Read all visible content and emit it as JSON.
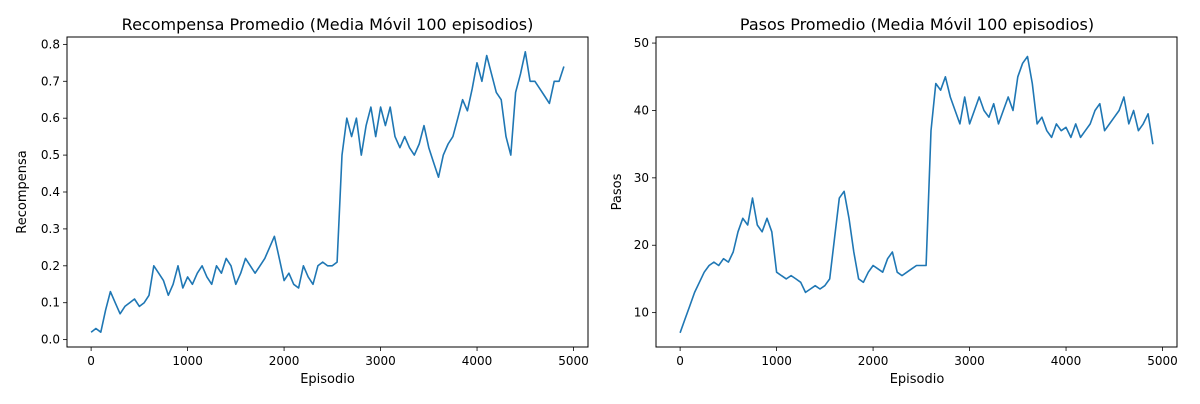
{
  "chart_data": [
    {
      "type": "line",
      "title": "Recompensa Promedio (Media Móvil 100 episodios)",
      "xlabel": "Episodio",
      "ylabel": "Recompensa",
      "xlim": [
        -250,
        5150
      ],
      "ylim": [
        -0.02,
        0.82
      ],
      "xticks": [
        "0",
        "1000",
        "2000",
        "3000",
        "4000",
        "5000"
      ],
      "yticks": [
        "0.0",
        "0.1",
        "0.2",
        "0.3",
        "0.4",
        "0.5",
        "0.6",
        "0.7",
        "0.8"
      ],
      "grid": false,
      "color": "#1f77b4",
      "series": [
        {
          "x": [
            0,
            50,
            100,
            150,
            200,
            250,
            300,
            350,
            400,
            450,
            500,
            550,
            600,
            650,
            700,
            750,
            800,
            850,
            900,
            950,
            1000,
            1050,
            1100,
            1150,
            1200,
            1250,
            1300,
            1350,
            1400,
            1450,
            1500,
            1550,
            1600,
            1650,
            1700,
            1750,
            1800,
            1850,
            1900,
            1950,
            2000,
            2050,
            2100,
            2150,
            2200,
            2250,
            2300,
            2350,
            2400,
            2450,
            2500,
            2550,
            2600,
            2650,
            2700,
            2750,
            2800,
            2850,
            2900,
            2950,
            3000,
            3050,
            3100,
            3150,
            3200,
            3250,
            3300,
            3350,
            3400,
            3450,
            3500,
            3550,
            3600,
            3650,
            3700,
            3750,
            3800,
            3850,
            3900,
            3950,
            4000,
            4050,
            4100,
            4150,
            4200,
            4250,
            4300,
            4350,
            4400,
            4450,
            4500,
            4550,
            4600,
            4650,
            4700,
            4750,
            4800,
            4850,
            4900
          ],
          "y": [
            0.02,
            0.03,
            0.02,
            0.08,
            0.13,
            0.1,
            0.07,
            0.09,
            0.1,
            0.11,
            0.09,
            0.1,
            0.12,
            0.2,
            0.18,
            0.16,
            0.12,
            0.15,
            0.2,
            0.14,
            0.17,
            0.15,
            0.18,
            0.2,
            0.17,
            0.15,
            0.2,
            0.18,
            0.22,
            0.2,
            0.15,
            0.18,
            0.22,
            0.2,
            0.18,
            0.2,
            0.22,
            0.25,
            0.28,
            0.22,
            0.16,
            0.18,
            0.15,
            0.14,
            0.2,
            0.17,
            0.15,
            0.2,
            0.21,
            0.2,
            0.2,
            0.21,
            0.5,
            0.6,
            0.55,
            0.6,
            0.5,
            0.58,
            0.63,
            0.55,
            0.63,
            0.58,
            0.63,
            0.55,
            0.52,
            0.55,
            0.52,
            0.5,
            0.53,
            0.58,
            0.52,
            0.48,
            0.44,
            0.5,
            0.53,
            0.55,
            0.6,
            0.65,
            0.62,
            0.68,
            0.75,
            0.7,
            0.77,
            0.72,
            0.67,
            0.65,
            0.55,
            0.5,
            0.67,
            0.72,
            0.78,
            0.7,
            0.7,
            0.68,
            0.66,
            0.64,
            0.7,
            0.7,
            0.74
          ]
        }
      ]
    },
    {
      "type": "line",
      "title": "Pasos Promedio (Media Móvil 100 episodios)",
      "xlabel": "Episodio",
      "ylabel": "Pasos",
      "xlim": [
        -250,
        5150
      ],
      "ylim": [
        4.9,
        50.9
      ],
      "xticks": [
        "0",
        "1000",
        "2000",
        "3000",
        "4000",
        "5000"
      ],
      "yticks": [
        "10",
        "20",
        "30",
        "40",
        "50"
      ],
      "grid": false,
      "color": "#1f77b4",
      "series": [
        {
          "x": [
            0,
            50,
            100,
            150,
            200,
            250,
            300,
            350,
            400,
            450,
            500,
            550,
            600,
            650,
            700,
            750,
            800,
            850,
            900,
            950,
            1000,
            1050,
            1100,
            1150,
            1200,
            1250,
            1300,
            1350,
            1400,
            1450,
            1500,
            1550,
            1600,
            1650,
            1700,
            1750,
            1800,
            1850,
            1900,
            1950,
            2000,
            2050,
            2100,
            2150,
            2200,
            2250,
            2300,
            2350,
            2400,
            2450,
            2500,
            2550,
            2600,
            2650,
            2700,
            2750,
            2800,
            2850,
            2900,
            2950,
            3000,
            3050,
            3100,
            3150,
            3200,
            3250,
            3300,
            3350,
            3400,
            3450,
            3500,
            3550,
            3600,
            3650,
            3700,
            3750,
            3800,
            3850,
            3900,
            3950,
            4000,
            4050,
            4100,
            4150,
            4200,
            4250,
            4300,
            4350,
            4400,
            4450,
            4500,
            4550,
            4600,
            4650,
            4700,
            4750,
            4800,
            4850,
            4900
          ],
          "y": [
            7,
            9,
            11,
            13,
            14.5,
            16,
            17,
            17.5,
            17,
            18,
            17.5,
            19,
            22,
            24,
            23,
            27,
            23,
            22,
            24,
            22,
            16,
            15.5,
            15,
            15.5,
            15,
            14.5,
            13,
            13.5,
            14,
            13.5,
            14,
            15,
            21,
            27,
            28,
            24,
            19,
            15,
            14.5,
            16,
            17,
            16.5,
            16,
            18,
            19,
            16,
            15.5,
            16,
            16.5,
            17,
            17,
            17,
            37,
            44,
            43,
            45,
            42,
            40,
            38,
            42,
            38,
            40,
            42,
            40,
            39,
            41,
            38,
            40,
            42,
            40,
            45,
            47,
            48,
            44,
            38,
            39,
            37,
            36,
            38,
            37,
            37.5,
            36,
            38,
            36,
            37,
            38,
            40,
            41,
            37,
            38,
            39,
            40,
            42,
            38,
            40,
            37,
            38,
            39.5,
            35
          ]
        }
      ]
    }
  ]
}
